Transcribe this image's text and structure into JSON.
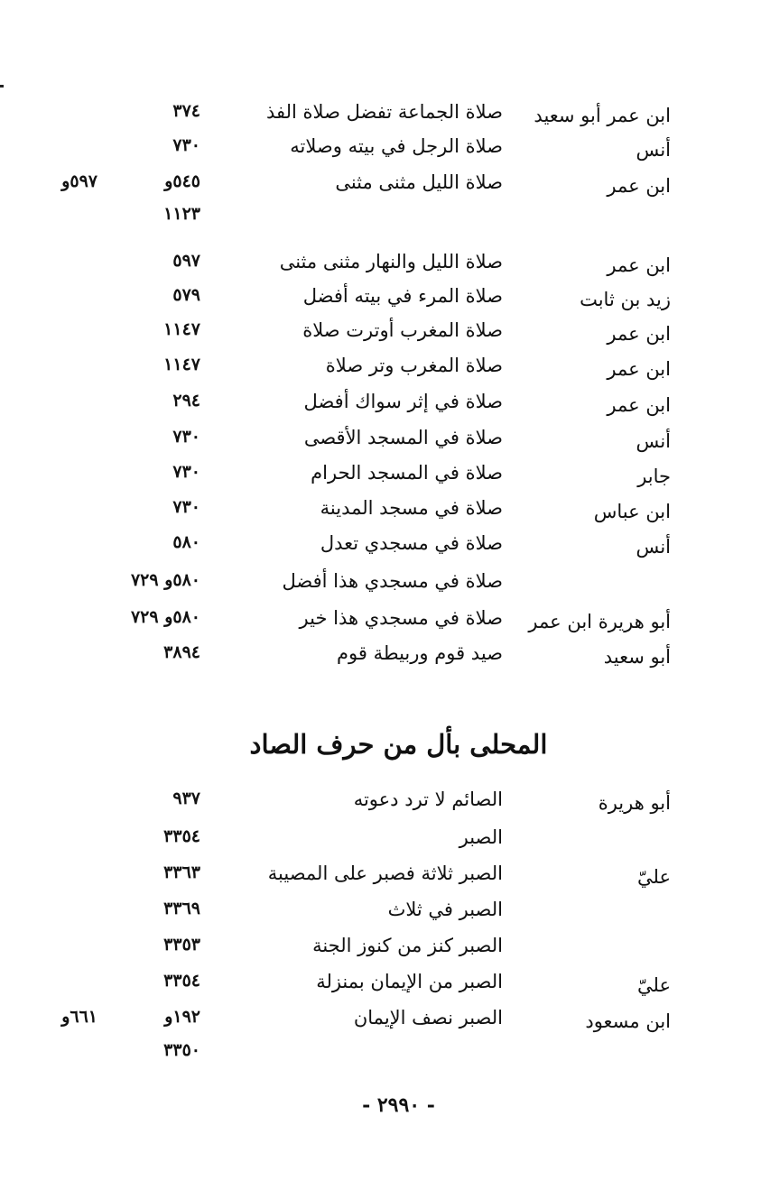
{
  "section1": {
    "rows": [
      {
        "narrator": "ابن عمر أبو سعيد",
        "text": "صلاة الجماعة تفضل صلاة الفذ",
        "ref": "٣٧٤",
        "ref2": ""
      },
      {
        "narrator": "أنس",
        "text": "صلاة الرجل في بيته وصلاته",
        "ref": "٧٣٠",
        "ref2": ""
      },
      {
        "narrator": "ابن عمر",
        "text": "صلاة الليل مثنى مثنى",
        "ref": "٥٤٥و",
        "ref2": "٥٩٧و"
      },
      {
        "narrator": "",
        "text": "",
        "ref": "١١٢٣",
        "ref2": ""
      },
      {
        "narrator": "ابن عمر",
        "text": "صلاة الليل والنهار مثنى مثنى",
        "ref": "٥٩٧",
        "ref2": ""
      },
      {
        "narrator": "زيد بن ثابت",
        "text": "صلاة المرء في بيته أفضل",
        "ref": "٥٧٩",
        "ref2": ""
      },
      {
        "narrator": "ابن عمر",
        "text": "صلاة المغرب أوترت صلاة",
        "ref": "١١٤٧",
        "ref2": ""
      },
      {
        "narrator": "ابن عمر",
        "text": "صلاة المغرب وتر صلاة",
        "ref": "١١٤٧",
        "ref2": ""
      },
      {
        "narrator": "ابن عمر",
        "text": "صلاة في إثر سواك أفضل",
        "ref": "٢٩٤",
        "ref2": ""
      },
      {
        "narrator": "أنس",
        "text": "صلاة في المسجد الأقصى",
        "ref": "٧٣٠",
        "ref2": ""
      },
      {
        "narrator": "جابر",
        "text": "صلاة في المسجد الحرام",
        "ref": "٧٣٠",
        "ref2": ""
      },
      {
        "narrator": "ابن عباس",
        "text": "صلاة في مسجد المدينة",
        "ref": "٧٣٠",
        "ref2": ""
      },
      {
        "narrator": "أنس",
        "text": "صلاة في مسجدي تعدل",
        "ref": "٥٨٠",
        "ref2": ""
      },
      {
        "narrator": "",
        "text": "صلاة في مسجدي هذا أفضل",
        "ref": "٥٨٠و ٧٢٩",
        "ref2": ""
      },
      {
        "narrator": "أبو هريرة ابن عمر",
        "text": "صلاة في مسجدي هذا خير",
        "ref": "٥٨٠و ٧٢٩",
        "ref2": ""
      },
      {
        "narrator": "أبو سعيد",
        "text": "صيد قوم وربيطة قوم",
        "ref": "٣٨٩٤",
        "ref2": ""
      }
    ]
  },
  "section2": {
    "heading": "المحلى بأل من حرف الصاد",
    "rows": [
      {
        "narrator": "أبو هريرة",
        "text": "الصائم لا ترد دعوته",
        "ref": "٩٣٧",
        "ref2": ""
      },
      {
        "narrator": "",
        "text": "الصبر",
        "ref": "٣٣٥٤",
        "ref2": ""
      },
      {
        "narrator": "عليّ",
        "text": "الصبر ثلاثة فصبر على المصيبة",
        "ref": "٣٣٦٣",
        "ref2": ""
      },
      {
        "narrator": "",
        "text": "الصبر في ثلاث",
        "ref": "٣٣٦٩",
        "ref2": ""
      },
      {
        "narrator": "",
        "text": "الصبر كنز من كنوز الجنة",
        "ref": "٣٣٥٣",
        "ref2": ""
      },
      {
        "narrator": "عليّ",
        "text": "الصبر من الإيمان بمنزلة",
        "ref": "٣٣٥٤",
        "ref2": ""
      },
      {
        "narrator": "ابن مسعود",
        "text": "الصبر نصف الإيمان",
        "ref": "١٩٢و",
        "ref2": "٦٦١و"
      },
      {
        "narrator": "",
        "text": "",
        "ref": "٣٣٥٠",
        "ref2": ""
      }
    ]
  },
  "page_number": "- ٢٩٩٠ -"
}
